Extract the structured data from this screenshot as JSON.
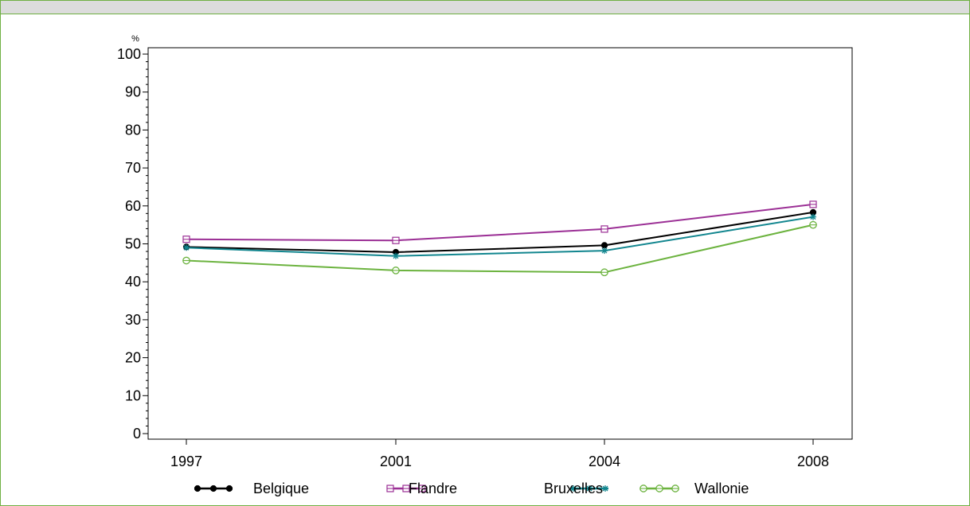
{
  "chart_data": {
    "type": "line",
    "ylabel": "%",
    "xlabel": "",
    "title": "",
    "x": [
      "1997",
      "2001",
      "2004",
      "2008"
    ],
    "ylim": [
      0,
      100
    ],
    "yticks": [
      0,
      10,
      20,
      30,
      40,
      50,
      60,
      70,
      80,
      90,
      100
    ],
    "legend_position": "bottom",
    "grid": false,
    "series": [
      {
        "name": "Belgique",
        "color": "#000000",
        "marker": "filled-circle",
        "values": [
          49.2,
          47.8,
          49.6,
          58.3
        ]
      },
      {
        "name": "Flandre",
        "color": "#9b2f95",
        "marker": "square",
        "values": [
          51.2,
          50.9,
          53.9,
          60.4
        ]
      },
      {
        "name": "Bruxelles",
        "color": "#12868f",
        "marker": "star",
        "values": [
          49.0,
          46.8,
          48.2,
          57.1
        ]
      },
      {
        "name": "Wallonie",
        "color": "#6cb33f",
        "marker": "open-circle",
        "values": [
          45.6,
          43.0,
          42.5,
          55.0
        ]
      }
    ]
  }
}
